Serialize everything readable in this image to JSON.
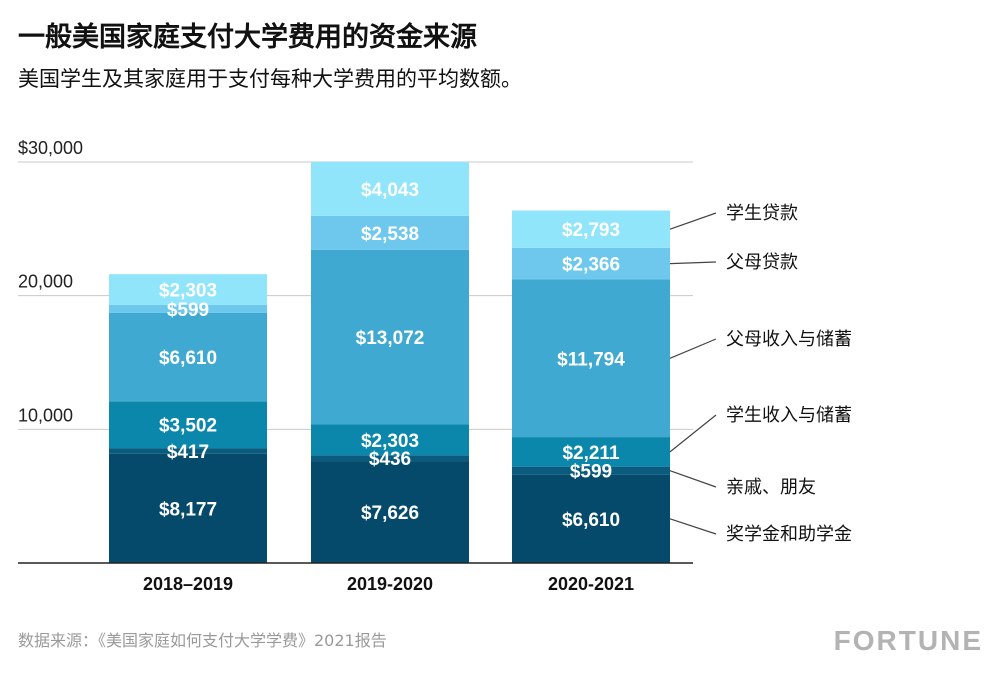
{
  "title": "一般美国家庭支付大学费用的资金来源",
  "subtitle": "美国学生及其家庭用于支付每种大学费用的平均数额。",
  "source": "数据来源：《美国家庭如何支付大学学费》2021报告",
  "brand": "FORTUNE",
  "chart_data": {
    "type": "bar",
    "stacked": true,
    "categories": [
      "2018–2019",
      "2019-2020",
      "2020-2021"
    ],
    "ylim": [
      0,
      30000
    ],
    "yticks": [
      {
        "value": 10000,
        "label": "10,000"
      },
      {
        "value": 20000,
        "label": "20,000"
      },
      {
        "value": 30000,
        "label": "$30,000"
      }
    ],
    "grid": true,
    "legend_position": "right",
    "series": [
      {
        "name": "奖学金和助学金",
        "color": "#054a6b",
        "values": [
          8177,
          7626,
          6610
        ],
        "labels": [
          "$8,177",
          "$7,626",
          "$6,610"
        ]
      },
      {
        "name": "亲戚、朋友",
        "color": "#0a5b7d",
        "values": [
          417,
          436,
          599
        ],
        "labels": [
          "$417",
          "$436",
          "$599"
        ]
      },
      {
        "name": "学生收入与储蓄",
        "color": "#0b87ab",
        "values": [
          3502,
          2303,
          2211
        ],
        "labels": [
          "$3,502",
          "$2,303",
          "$2,211"
        ]
      },
      {
        "name": "父母收入与储蓄",
        "color": "#3fa9d2",
        "values": [
          6610,
          13072,
          11794
        ],
        "labels": [
          "$6,610",
          "$13,072",
          "$11,794"
        ]
      },
      {
        "name": "父母贷款",
        "color": "#6ec8ee",
        "values": [
          599,
          2538,
          2366
        ],
        "labels": [
          "$599",
          "$2,538",
          "$2,366"
        ]
      },
      {
        "name": "学生贷款",
        "color": "#91e5fb",
        "values": [
          2303,
          4043,
          2793
        ],
        "labels": [
          "$2,303",
          "$4,043",
          "$2,793"
        ]
      }
    ]
  }
}
